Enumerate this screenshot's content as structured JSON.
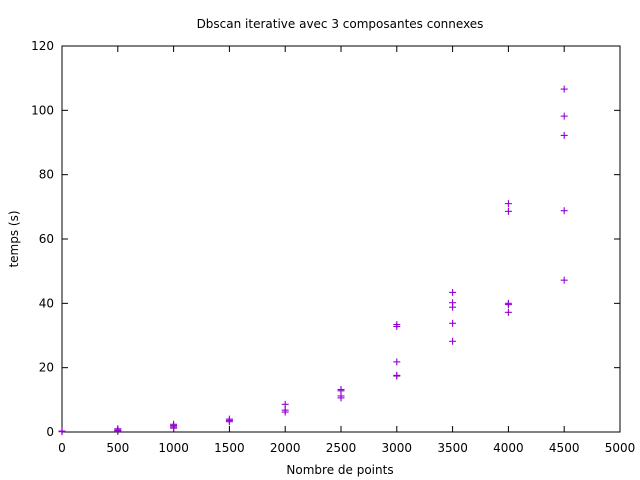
{
  "chart_data": {
    "type": "scatter",
    "title": "Dbscan iterative avec 3 composantes connexes",
    "xlabel": "Nombre de points",
    "ylabel": "temps (s)",
    "xlim": [
      0,
      5000
    ],
    "ylim": [
      0,
      120
    ],
    "xticks": [
      0,
      500,
      1000,
      1500,
      2000,
      2500,
      3000,
      3500,
      4000,
      4500,
      5000
    ],
    "yticks": [
      0,
      20,
      40,
      60,
      80,
      100,
      120
    ],
    "grid": false,
    "marker": "plus",
    "series": [
      {
        "color": "#9400d3",
        "points": [
          [
            0,
            0.1
          ],
          [
            0,
            0.2
          ],
          [
            0,
            0.3
          ],
          [
            500,
            0.2
          ],
          [
            500,
            0.4
          ],
          [
            500,
            0.6
          ],
          [
            500,
            1.0
          ],
          [
            1000,
            1.2
          ],
          [
            1000,
            1.6
          ],
          [
            1000,
            2.0
          ],
          [
            1000,
            2.4
          ],
          [
            1500,
            3.2
          ],
          [
            1500,
            3.6
          ],
          [
            1500,
            4.0
          ],
          [
            2000,
            6.2
          ],
          [
            2000,
            6.8
          ],
          [
            2000,
            8.6
          ],
          [
            2500,
            10.6
          ],
          [
            2500,
            11.2
          ],
          [
            2500,
            12.8
          ],
          [
            2500,
            13.2
          ],
          [
            3000,
            17.4
          ],
          [
            3000,
            17.6
          ],
          [
            3000,
            21.8
          ],
          [
            3000,
            32.8
          ],
          [
            3000,
            33.4
          ],
          [
            3500,
            28.2
          ],
          [
            3500,
            33.8
          ],
          [
            3500,
            38.8
          ],
          [
            3500,
            40.2
          ],
          [
            3500,
            43.4
          ],
          [
            4000,
            37.2
          ],
          [
            4000,
            39.6
          ],
          [
            4000,
            40.0
          ],
          [
            4000,
            68.6
          ],
          [
            4000,
            71.0
          ],
          [
            4500,
            47.2
          ],
          [
            4500,
            68.8
          ],
          [
            4500,
            92.2
          ],
          [
            4500,
            98.2
          ],
          [
            4500,
            106.6
          ]
        ]
      }
    ]
  }
}
